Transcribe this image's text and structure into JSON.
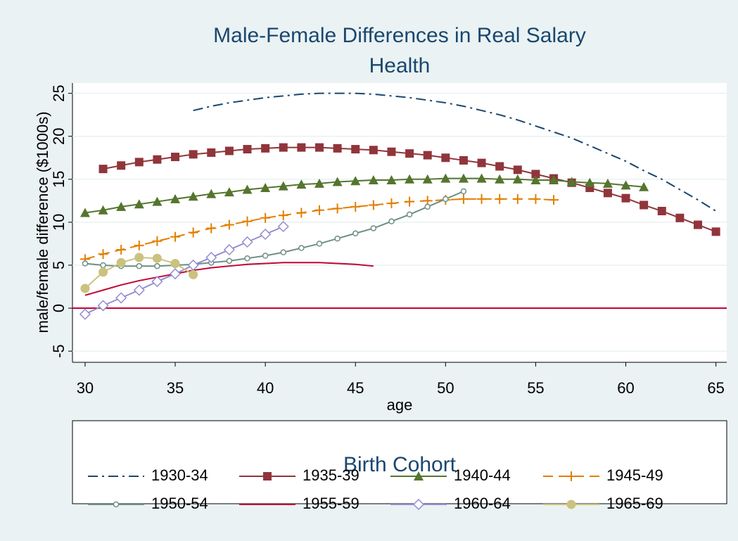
{
  "chart_data": {
    "type": "line",
    "title": [
      "Male-Female Differences in Real Salary",
      "Health"
    ],
    "xlabel": "age",
    "ylabel": "male/female difference ($1000s)",
    "xlim": [
      29.3,
      65.6
    ],
    "xticks": [
      30,
      35,
      40,
      45,
      50,
      55,
      60,
      65
    ],
    "ylim": [
      -6.3,
      26.2
    ],
    "yticks": [
      -5,
      0,
      5,
      10,
      15,
      20,
      25
    ],
    "grid": true,
    "reference_line": {
      "value": 0,
      "color": "#c10534"
    },
    "legend_title": "Birth Cohort",
    "legend_position": "bottom",
    "series": [
      {
        "name": "1930-34",
        "color": "#1a476f",
        "marker": "none",
        "line_style": "dash-dot",
        "x": [
          36,
          37,
          38,
          39,
          40,
          41,
          42,
          43,
          44,
          45,
          46,
          47,
          48,
          49,
          50,
          51,
          52,
          53,
          54,
          55,
          56,
          57,
          58,
          59,
          60,
          61,
          62,
          63,
          64,
          65
        ],
        "values": [
          23.0,
          23.5,
          23.9,
          24.2,
          24.5,
          24.7,
          24.9,
          25.0,
          25.0,
          25.0,
          24.9,
          24.7,
          24.5,
          24.2,
          23.9,
          23.5,
          23.0,
          22.5,
          21.9,
          21.2,
          20.5,
          19.8,
          18.9,
          18.0,
          17.1,
          16.0,
          15.0,
          13.8,
          12.6,
          11.3
        ]
      },
      {
        "name": "1935-39",
        "color": "#90353b",
        "marker": "square",
        "line_style": "solid",
        "x": [
          31,
          32,
          33,
          34,
          35,
          36,
          37,
          38,
          39,
          40,
          41,
          42,
          43,
          44,
          45,
          46,
          47,
          48,
          49,
          50,
          51,
          52,
          53,
          54,
          55,
          56,
          57,
          58,
          59,
          60,
          61,
          62,
          63,
          64,
          65
        ],
        "values": [
          16.2,
          16.6,
          17.0,
          17.3,
          17.6,
          17.9,
          18.1,
          18.3,
          18.5,
          18.6,
          18.7,
          18.7,
          18.7,
          18.6,
          18.5,
          18.4,
          18.2,
          18.0,
          17.8,
          17.5,
          17.2,
          16.9,
          16.5,
          16.1,
          15.6,
          15.1,
          14.6,
          14.0,
          13.4,
          12.8,
          12.0,
          11.3,
          10.5,
          9.7,
          8.9
        ]
      },
      {
        "name": "1940-44",
        "color": "#55752f",
        "marker": "triangle",
        "line_style": "solid",
        "x": [
          30,
          31,
          32,
          33,
          34,
          35,
          36,
          37,
          38,
          39,
          40,
          41,
          42,
          43,
          44,
          45,
          46,
          47,
          48,
          49,
          50,
          51,
          52,
          53,
          54,
          55,
          56,
          57,
          58,
          59,
          60,
          61
        ],
        "values": [
          11.1,
          11.4,
          11.8,
          12.1,
          12.4,
          12.7,
          13.0,
          13.3,
          13.5,
          13.8,
          14.0,
          14.2,
          14.4,
          14.5,
          14.7,
          14.8,
          14.9,
          14.9,
          15.0,
          15.0,
          15.1,
          15.1,
          15.1,
          15.0,
          15.0,
          14.9,
          14.9,
          14.7,
          14.6,
          14.5,
          14.3,
          14.1
        ]
      },
      {
        "name": "1945-49",
        "color": "#e37e00",
        "marker": "plus",
        "line_style": "dash",
        "x": [
          30,
          31,
          32,
          33,
          34,
          35,
          36,
          37,
          38,
          39,
          40,
          41,
          42,
          43,
          44,
          45,
          46,
          47,
          48,
          49,
          50,
          51,
          52,
          53,
          54,
          55,
          56
        ],
        "values": [
          5.7,
          6.3,
          6.8,
          7.3,
          7.8,
          8.3,
          8.8,
          9.3,
          9.7,
          10.1,
          10.5,
          10.8,
          11.1,
          11.4,
          11.6,
          11.8,
          12.0,
          12.2,
          12.4,
          12.5,
          12.6,
          12.7,
          12.7,
          12.7,
          12.7,
          12.7,
          12.6
        ]
      },
      {
        "name": "1950-54",
        "color": "#6e8e84",
        "marker": "small-hollow-circle",
        "line_style": "solid",
        "x": [
          30,
          31,
          32,
          33,
          34,
          35,
          36,
          37,
          38,
          39,
          40,
          41,
          42,
          43,
          44,
          45,
          46,
          47,
          48,
          49,
          50,
          51
        ],
        "values": [
          5.2,
          5.0,
          4.9,
          4.9,
          4.9,
          5.0,
          5.1,
          5.3,
          5.5,
          5.8,
          6.1,
          6.5,
          7.0,
          7.5,
          8.1,
          8.7,
          9.3,
          10.1,
          10.9,
          11.8,
          12.7,
          13.6
        ]
      },
      {
        "name": "1955-59",
        "color": "#c10534",
        "marker": "none",
        "line_style": "solid",
        "x": [
          30,
          31,
          32,
          33,
          34,
          35,
          36,
          37,
          38,
          39,
          40,
          41,
          42,
          43,
          44,
          45,
          46
        ],
        "values": [
          1.5,
          2.1,
          2.7,
          3.2,
          3.6,
          4.0,
          4.4,
          4.7,
          4.9,
          5.1,
          5.2,
          5.3,
          5.3,
          5.3,
          5.2,
          5.1,
          4.9
        ]
      },
      {
        "name": "1960-64",
        "color": "#938dd2",
        "marker": "hollow-diamond",
        "line_style": "solid",
        "x": [
          30,
          31,
          32,
          33,
          34,
          35,
          36,
          37,
          38,
          39,
          40,
          41
        ],
        "values": [
          -0.7,
          0.3,
          1.2,
          2.1,
          3.1,
          4.0,
          5.0,
          5.9,
          6.8,
          7.7,
          8.6,
          9.5
        ]
      },
      {
        "name": "1965-69",
        "color": "#cac27e",
        "marker": "circle",
        "line_style": "solid",
        "x": [
          30,
          31,
          32,
          33,
          34,
          35,
          36
        ],
        "values": [
          2.3,
          4.2,
          5.3,
          5.9,
          5.8,
          5.2,
          3.9
        ]
      }
    ]
  }
}
